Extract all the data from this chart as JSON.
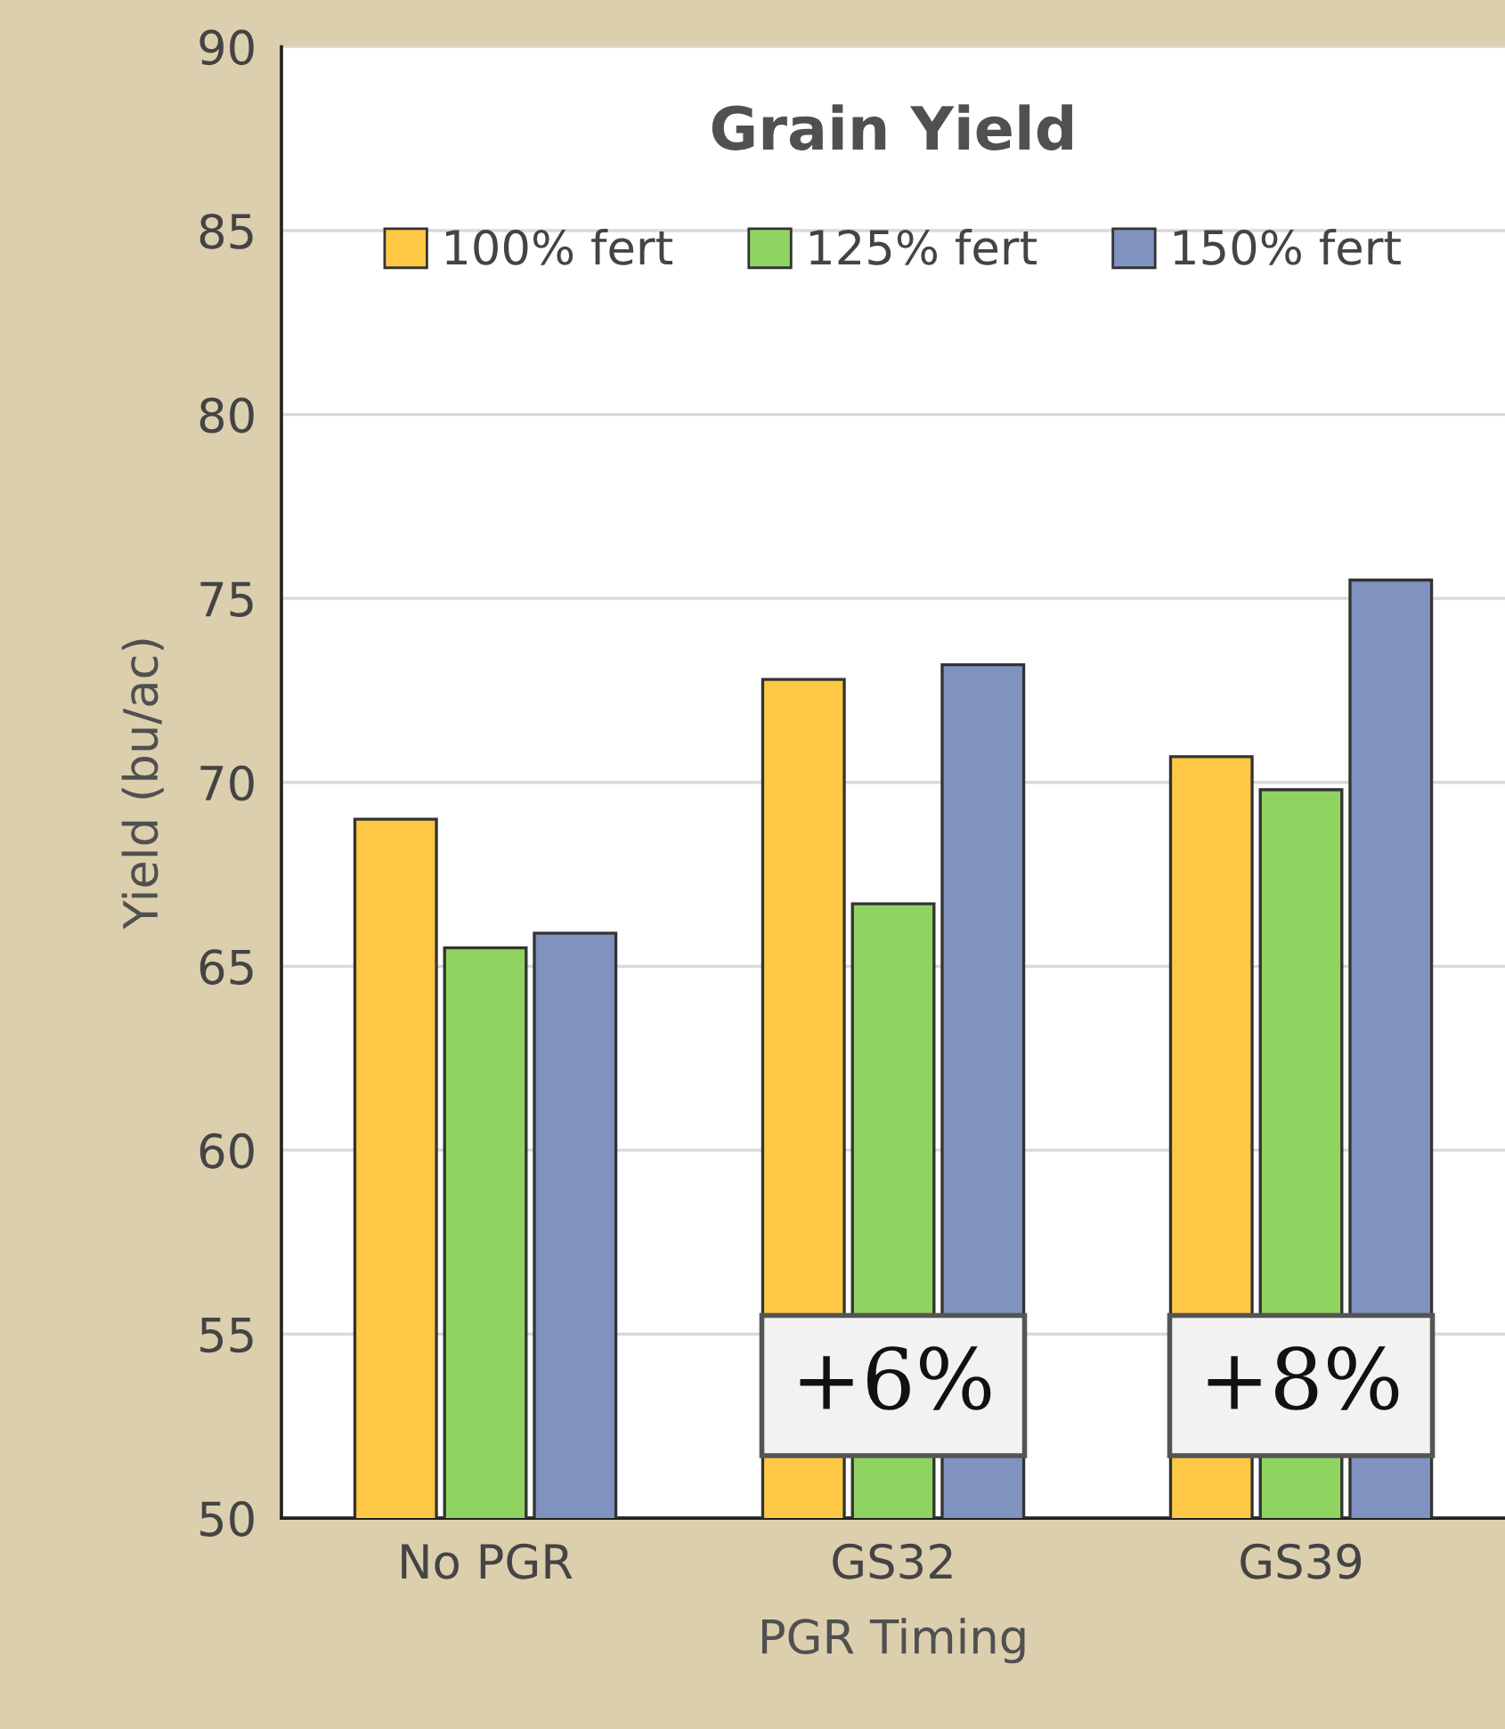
{
  "chart_data": {
    "type": "bar",
    "title": "Grain Yield",
    "xlabel": "PGR Timing",
    "ylabel": "Yield (bu/ac)",
    "categories": [
      "No PGR",
      "GS32",
      "GS39"
    ],
    "series": [
      {
        "name": "100% fert",
        "color": "#fec844",
        "values": [
          69.0,
          72.8,
          70.7
        ]
      },
      {
        "name": "125% fert",
        "color": "#8fd460",
        "values": [
          65.5,
          66.7,
          69.8
        ]
      },
      {
        "name": "150% fert",
        "color": "#7f92c0",
        "values": [
          65.9,
          73.2,
          75.5
        ]
      }
    ],
    "ylim": [
      50,
      90
    ],
    "yticks": [
      50,
      55,
      60,
      65,
      70,
      75,
      80,
      85,
      90
    ],
    "grid": "y",
    "legend": "top",
    "annotations": [
      "+6%",
      "+8%"
    ]
  }
}
